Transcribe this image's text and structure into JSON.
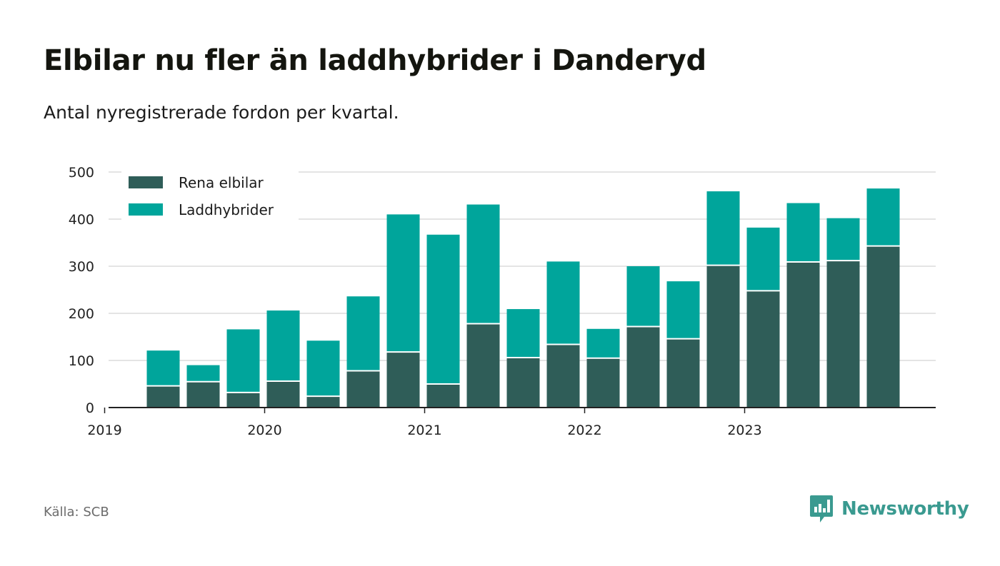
{
  "title": "Elbilar nu fler än laddhybrider i Danderyd",
  "subtitle": "Antal nyregistrerade fordon per kvartal.",
  "source": "Källa: SCB",
  "brand": {
    "name": "Newsworthy",
    "color": "#3a9a90",
    "icon": "newsworthy-logo-icon"
  },
  "colors": {
    "elbilar": "#2f5d58",
    "laddhybrider": "#00a59b",
    "grid": "#dcdcdc",
    "axis": "#222222"
  },
  "chart_data": {
    "type": "bar",
    "stacked": true,
    "title": "Elbilar nu fler än laddhybrider i Danderyd",
    "subtitle": "Antal nyregistrerade fordon per kvartal.",
    "xlabel": "",
    "ylabel": "",
    "ylim": [
      0,
      500
    ],
    "yticks": [
      0,
      100,
      200,
      300,
      400,
      500
    ],
    "grid": true,
    "legend_position": "top-left",
    "x_tick_labels": [
      "2019",
      "2020",
      "2021",
      "2022",
      "2023"
    ],
    "categories": [
      "2019 Q2",
      "2019 Q3",
      "2019 Q4",
      "2020 Q1",
      "2020 Q2",
      "2020 Q3",
      "2020 Q4",
      "2021 Q1",
      "2021 Q2",
      "2021 Q3",
      "2021 Q4",
      "2022 Q1",
      "2022 Q2",
      "2022 Q3",
      "2022 Q4",
      "2023 Q1",
      "2023 Q2",
      "2023 Q3",
      "2023 Q4"
    ],
    "series": [
      {
        "name": "Rena elbilar",
        "values": [
          46,
          55,
          32,
          56,
          24,
          78,
          118,
          50,
          178,
          106,
          134,
          105,
          172,
          146,
          302,
          248,
          309,
          312,
          343
        ]
      },
      {
        "name": "Laddhybrider",
        "values": [
          75,
          35,
          134,
          150,
          118,
          158,
          292,
          317,
          253,
          103,
          176,
          62,
          128,
          122,
          157,
          134,
          125,
          90,
          122
        ]
      }
    ]
  }
}
